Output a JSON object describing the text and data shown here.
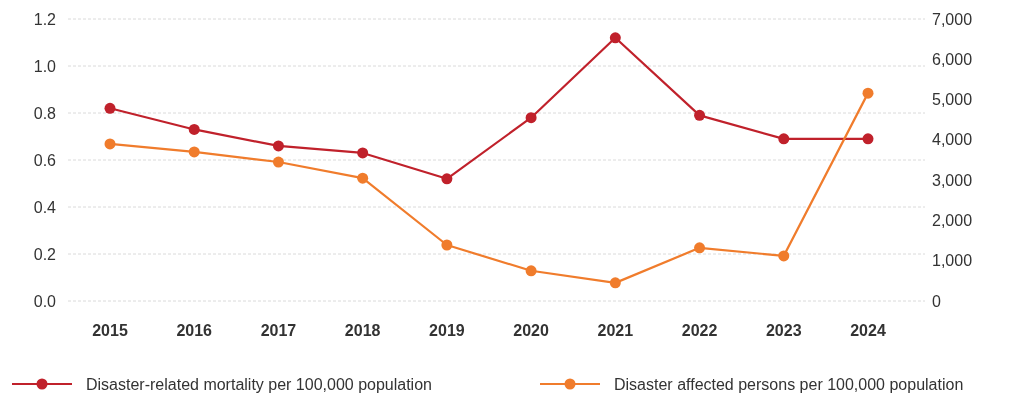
{
  "chart_data": {
    "type": "line",
    "categories": [
      "2015",
      "2016",
      "2017",
      "2018",
      "2019",
      "2020",
      "2021",
      "2022",
      "2023",
      "2024"
    ],
    "series": [
      {
        "name": "Disaster-related mortality per 100,000 population",
        "color": "#c0212b",
        "values": [
          0.82,
          0.73,
          0.66,
          0.63,
          0.52,
          0.78,
          1.12,
          0.79,
          0.69,
          0.69
        ]
      },
      {
        "name": "Disaster affected persons per 100,000 population",
        "color": "#f07c2c",
        "axis": "y2",
        "values": [
          3900,
          3700,
          3450,
          3050,
          1390,
          750,
          450,
          1320,
          1120,
          5160
        ]
      }
    ],
    "ylim": [
      0,
      1.2
    ],
    "yticks": [
      {
        "value": 0,
        "label": "0.0"
      },
      0.2,
      0.4,
      0.6,
      0.8,
      {
        "value": 1,
        "label": "1.0"
      },
      1.2
    ],
    "y2lim": [
      0,
      7000
    ],
    "y2ticks": [
      0,
      {
        "value": 1000,
        "label": "1,000"
      },
      {
        "value": 2000,
        "label": "2,000"
      },
      {
        "value": 3000,
        "label": "3,000"
      },
      {
        "value": 4000,
        "label": "4,000"
      },
      {
        "value": 5000,
        "label": "5,000"
      },
      {
        "value": 6000,
        "label": "6,000"
      },
      {
        "value": 7000,
        "label": "7,000"
      }
    ],
    "grid": "y",
    "legend": "bottom",
    "marker": "circle",
    "line_style": "solid"
  }
}
